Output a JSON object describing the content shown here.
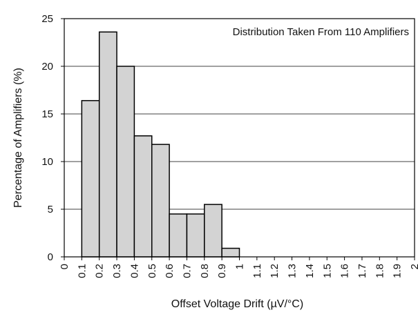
{
  "chart_data": {
    "type": "bar",
    "title": "",
    "annotation": "Distribution Taken From 110 Amplifiers",
    "xlabel": "Offset Voltage Drift (µV/°C)",
    "ylabel": "Percentage of Amplifiers (%)",
    "x_ticks": [
      "0",
      "0.1",
      "0.2",
      "0.3",
      "0.4",
      "0.5",
      "0.6",
      "0.7",
      "0.8",
      "0.9",
      "1",
      "1.1",
      "1.2",
      "1.3",
      "1.4",
      "1.5",
      "1.6",
      "1.7",
      "1.8",
      "1.9",
      "2"
    ],
    "y_ticks": [
      0,
      5,
      10,
      15,
      20,
      25
    ],
    "ylim": [
      0,
      25
    ],
    "xlim": [
      0,
      2
    ],
    "grid": "horizontal",
    "bins": [
      {
        "start": 0.1,
        "end": 0.2,
        "value": 16.4
      },
      {
        "start": 0.2,
        "end": 0.3,
        "value": 23.6
      },
      {
        "start": 0.3,
        "end": 0.4,
        "value": 20.0
      },
      {
        "start": 0.4,
        "end": 0.5,
        "value": 12.7
      },
      {
        "start": 0.5,
        "end": 0.6,
        "value": 11.8
      },
      {
        "start": 0.6,
        "end": 0.7,
        "value": 4.5
      },
      {
        "start": 0.7,
        "end": 0.8,
        "value": 4.5
      },
      {
        "start": 0.8,
        "end": 0.9,
        "value": 5.5
      },
      {
        "start": 0.9,
        "end": 1.0,
        "value": 0.9
      }
    ],
    "bar_fill": "#d3d3d3",
    "bar_stroke": "#000000"
  }
}
